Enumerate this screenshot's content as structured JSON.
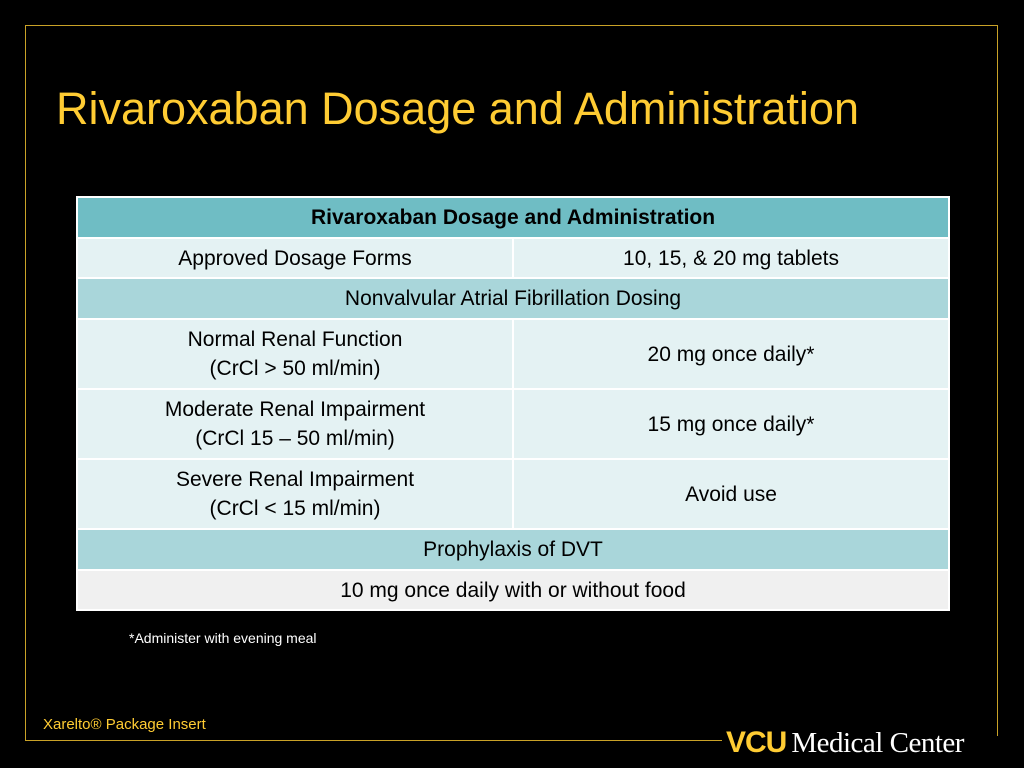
{
  "slide": {
    "title": "Rivaroxaban Dosage and Administration",
    "footnote": "*Administer with evening meal",
    "source": "Xarelto® Package Insert"
  },
  "table": {
    "header": "Rivaroxaban Dosage and Administration",
    "forms_label": "Approved Dosage Forms",
    "forms_value": "10, 15, & 20 mg tablets",
    "afib_section": "Nonvalvular Atrial Fibrillation Dosing",
    "normal_label_1": "Normal Renal Function",
    "normal_label_2": "(CrCl > 50 ml/min)",
    "normal_value": "20 mg once daily*",
    "moderate_label_1": "Moderate Renal Impairment",
    "moderate_label_2": "(CrCl 15 – 50 ml/min)",
    "moderate_value": "15 mg once daily*",
    "severe_label_1": "Severe Renal Impairment",
    "severe_label_2": "(CrCl < 15 ml/min)",
    "severe_value": "Avoid use",
    "dvt_section": "Prophylaxis of DVT",
    "dvt_value": "10 mg once daily with or without food"
  },
  "logo": {
    "vcu": "VCU",
    "medical_center": "Medical Center"
  },
  "colors": {
    "background": "#000000",
    "accent": "#ffcc33",
    "table_header": "#6fbdc4",
    "table_section": "#a9d6da",
    "table_row": "#e4f2f3"
  }
}
